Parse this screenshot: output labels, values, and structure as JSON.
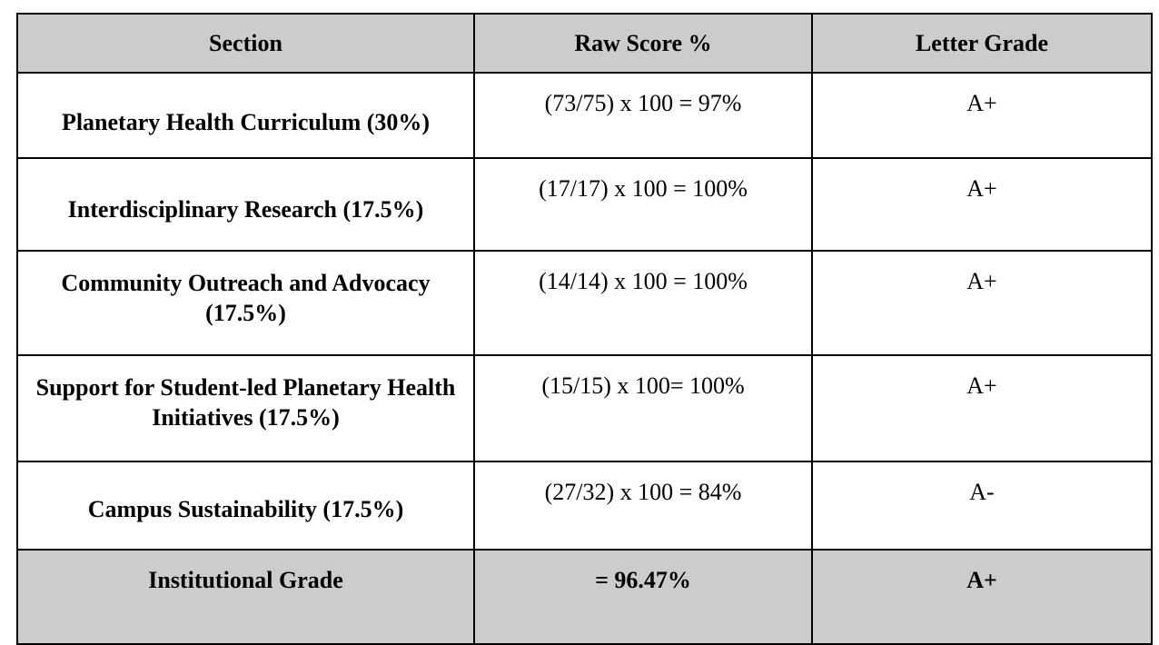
{
  "table": {
    "headers": {
      "section": "Section",
      "raw_score": "Raw Score %",
      "letter_grade": "Letter Grade"
    },
    "rows": [
      {
        "section": "Planetary Health Curriculum (30%)",
        "raw_score": "(73/75) x 100  = 97%",
        "letter_grade": "A+"
      },
      {
        "section": "Interdisciplinary Research  (17.5%)",
        "raw_score": "(17/17) x 100 = 100%",
        "letter_grade": "A+"
      },
      {
        "section": "Community Outreach and Advocacy (17.5%)",
        "raw_score": "(14/14) x 100 = 100%",
        "letter_grade": "A+"
      },
      {
        "section": "Support for Student-led Planetary Health Initiatives (17.5%)",
        "raw_score": "(15/15) x 100= 100%",
        "letter_grade": "A+"
      },
      {
        "section": "Campus Sustainability (17.5%)",
        "raw_score": "(27/32) x 100 = 84%",
        "letter_grade": "A-"
      }
    ],
    "total": {
      "section": "Institutional Grade",
      "raw_score": "= 96.47%",
      "letter_grade": "A+"
    }
  },
  "colors": {
    "header_background": "#cccccc",
    "total_background": "#cccccc",
    "border": "#000000"
  }
}
